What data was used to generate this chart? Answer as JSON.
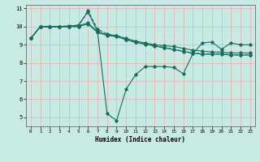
{
  "title": "",
  "xlabel": "Humidex (Indice chaleur)",
  "ylabel": "",
  "xlim": [
    -0.5,
    23.5
  ],
  "ylim": [
    4.5,
    11.2
  ],
  "yticks": [
    5,
    6,
    7,
    8,
    9,
    10,
    11
  ],
  "xticks": [
    0,
    1,
    2,
    3,
    4,
    5,
    6,
    7,
    8,
    9,
    10,
    11,
    12,
    13,
    14,
    15,
    16,
    17,
    18,
    19,
    20,
    21,
    22,
    23
  ],
  "background_color": "#c8eae4",
  "grid_color": "#e8b0b0",
  "line_color": "#1a6b5e",
  "lines": [
    [
      9.35,
      10.0,
      10.0,
      10.0,
      10.0,
      10.1,
      10.8,
      9.75,
      5.2,
      4.82,
      6.55,
      7.35,
      7.8,
      7.8,
      7.8,
      7.75,
      7.4,
      8.5,
      9.1,
      9.15,
      8.75,
      9.1,
      9.0,
      9.0
    ],
    [
      9.35,
      10.0,
      10.0,
      10.0,
      10.05,
      10.05,
      10.2,
      9.72,
      9.55,
      9.5,
      9.35,
      9.2,
      9.1,
      9.0,
      8.95,
      8.9,
      8.8,
      8.7,
      8.65,
      8.6,
      8.6,
      8.55,
      8.55,
      8.55
    ],
    [
      9.35,
      10.0,
      10.0,
      10.0,
      10.0,
      10.0,
      10.15,
      9.68,
      9.52,
      9.45,
      9.28,
      9.13,
      9.03,
      8.93,
      8.83,
      8.73,
      8.63,
      8.53,
      8.48,
      8.48,
      8.48,
      8.43,
      8.43,
      8.43
    ],
    [
      9.35,
      10.0,
      10.0,
      10.0,
      10.0,
      10.0,
      10.9,
      9.85,
      9.6,
      9.5,
      9.3,
      9.15,
      9.05,
      8.95,
      8.85,
      8.75,
      8.65,
      8.55,
      8.5,
      8.5,
      8.5,
      8.45,
      8.45,
      8.45
    ]
  ],
  "line_styles": [
    "-",
    "-",
    "-",
    "--"
  ],
  "marker": "D",
  "marker_size": 1.8,
  "linewidth": 0.8
}
